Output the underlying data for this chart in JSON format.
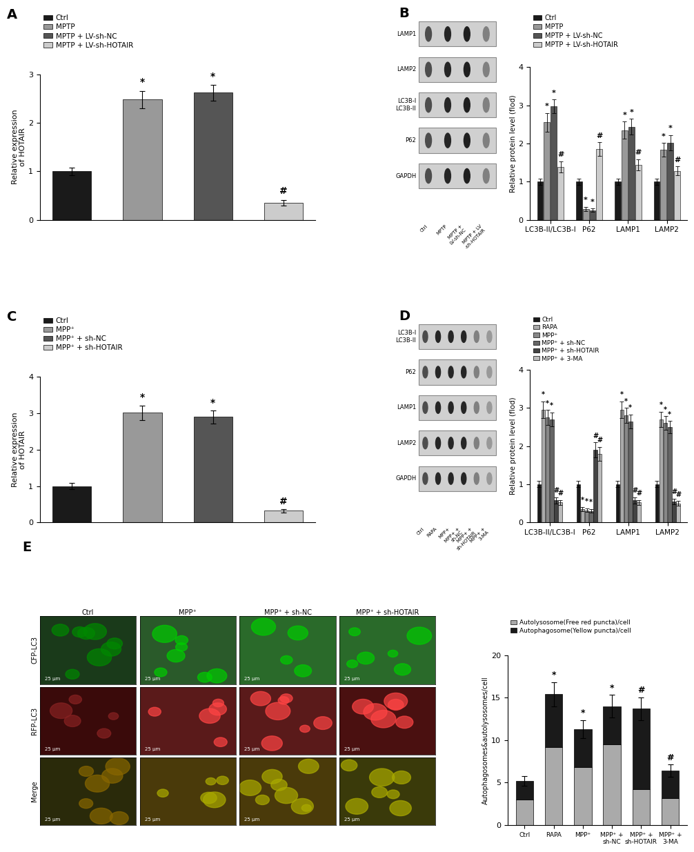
{
  "panel_A": {
    "title": "A",
    "ylabel": "Relative expression\nof HOTAIR",
    "ylim": [
      0,
      3
    ],
    "yticks": [
      0,
      1,
      2,
      3
    ],
    "categories": [
      "Ctrl",
      "MPTP",
      "MPTP + LV-sh-NC",
      "MPTP + LV-sh-HOTAIR"
    ],
    "values": [
      1.0,
      2.48,
      2.62,
      0.35
    ],
    "errors": [
      0.08,
      0.18,
      0.16,
      0.06
    ],
    "colors": [
      "#1a1a1a",
      "#999999",
      "#555555",
      "#cccccc"
    ],
    "annotations": [
      "",
      "*",
      "*",
      "#"
    ],
    "legend_labels": [
      "Ctrl",
      "MPTP",
      "MPTP + LV-sh-NC",
      "MPTP + LV-sh-HOTAIR"
    ],
    "legend_colors": [
      "#1a1a1a",
      "#999999",
      "#555555",
      "#cccccc"
    ]
  },
  "panel_B_bar": {
    "title": "B",
    "ylabel": "Relative protein level (flod)",
    "ylim": [
      0,
      4
    ],
    "yticks": [
      0,
      1,
      2,
      3,
      4
    ],
    "groups": [
      "LC3B-II/LC3B-I",
      "P62",
      "LAMP1",
      "LAMP2"
    ],
    "categories": [
      "Ctrl",
      "MPTP",
      "MPTP + LV-sh-NC",
      "MPTP + LV-sh-HOTAIR"
    ],
    "values": [
      [
        1.0,
        2.55,
        2.97,
        1.38
      ],
      [
        1.0,
        0.28,
        0.25,
        1.85
      ],
      [
        1.0,
        2.35,
        2.44,
        1.44
      ],
      [
        1.0,
        1.83,
        2.02,
        1.28
      ]
    ],
    "errors": [
      [
        0.08,
        0.25,
        0.18,
        0.15
      ],
      [
        0.08,
        0.06,
        0.05,
        0.18
      ],
      [
        0.08,
        0.22,
        0.2,
        0.15
      ],
      [
        0.08,
        0.18,
        0.2,
        0.12
      ]
    ],
    "annotations": [
      [
        "",
        "*",
        "*",
        "#"
      ],
      [
        "",
        "*",
        "*",
        "#"
      ],
      [
        "",
        "*",
        "*",
        "#"
      ],
      [
        "",
        "*",
        "*",
        "#"
      ]
    ],
    "colors": [
      "#1a1a1a",
      "#999999",
      "#555555",
      "#cccccc"
    ],
    "legend_labels": [
      "Ctrl",
      "MPTP",
      "MPTP + LV-sh-NC",
      "MPTP + LV-sh-HOTAIR"
    ],
    "legend_colors": [
      "#1a1a1a",
      "#999999",
      "#555555",
      "#cccccc"
    ]
  },
  "panel_C": {
    "title": "C",
    "ylabel": "Relative expression\nof HOTAIR",
    "ylim": [
      0,
      4
    ],
    "yticks": [
      0,
      1,
      2,
      3,
      4
    ],
    "categories": [
      "Ctrl",
      "MPP⁺",
      "MPP⁺ + sh-NC",
      "MPP⁺ + sh-HOTAIR"
    ],
    "values": [
      1.0,
      3.02,
      2.9,
      0.32
    ],
    "errors": [
      0.08,
      0.2,
      0.18,
      0.05
    ],
    "colors": [
      "#1a1a1a",
      "#999999",
      "#555555",
      "#cccccc"
    ],
    "annotations": [
      "",
      "*",
      "*",
      "#"
    ],
    "legend_labels": [
      "Ctrl",
      "MPP⁺",
      "MPP⁺ + sh-NC",
      "MPP⁺ + sh-HOTAIR"
    ],
    "legend_colors": [
      "#1a1a1a",
      "#999999",
      "#555555",
      "#cccccc"
    ]
  },
  "panel_D_bar": {
    "title": "D",
    "ylabel": "Relative protein level (flod)",
    "ylim": [
      0,
      4
    ],
    "yticks": [
      0,
      1,
      2,
      3,
      4
    ],
    "groups": [
      "LC3B-II/LC3B-I",
      "P62",
      "LAMP1",
      "LAMP2"
    ],
    "categories": [
      "Ctrl",
      "RAPA",
      "MPP⁺",
      "MPP⁺ + sh-NC",
      "MPP⁺ + sh-HOTAIR",
      "MPP⁺ + 3-MA"
    ],
    "values": [
      [
        1.0,
        2.95,
        2.75,
        2.7,
        0.58,
        0.52
      ],
      [
        1.0,
        0.35,
        0.32,
        0.3,
        1.9,
        1.8
      ],
      [
        1.0,
        2.95,
        2.8,
        2.65,
        0.58,
        0.52
      ],
      [
        1.0,
        2.7,
        2.6,
        2.5,
        0.55,
        0.5
      ]
    ],
    "errors": [
      [
        0.08,
        0.22,
        0.2,
        0.18,
        0.08,
        0.07
      ],
      [
        0.08,
        0.06,
        0.05,
        0.05,
        0.2,
        0.18
      ],
      [
        0.08,
        0.22,
        0.2,
        0.18,
        0.08,
        0.07
      ],
      [
        0.08,
        0.2,
        0.18,
        0.16,
        0.07,
        0.06
      ]
    ],
    "annotations": [
      [
        "",
        "*",
        "*",
        "*",
        "#",
        "#"
      ],
      [
        "",
        "*",
        "*",
        "*",
        "#",
        "#"
      ],
      [
        "",
        "*",
        "*",
        "*",
        "#",
        "#"
      ],
      [
        "",
        "*",
        "*",
        "*",
        "#",
        "#"
      ]
    ],
    "colors": [
      "#1a1a1a",
      "#aaaaaa",
      "#888888",
      "#666666",
      "#444444",
      "#bbbbbb"
    ],
    "legend_labels": [
      "Ctrl",
      "RAPA",
      "MPP⁺",
      "MPP⁺ + sh-NC",
      "MPP⁺ + sh-HOTAIR",
      "MPP⁺ + 3-MA"
    ],
    "legend_colors": [
      "#1a1a1a",
      "#aaaaaa",
      "#888888",
      "#666666",
      "#444444",
      "#bbbbbb"
    ]
  },
  "panel_E_bar": {
    "categories": [
      "Ctrl",
      "RAPA",
      "MPP⁺",
      "MPP⁺ +\nsh-NC",
      "MPP⁺ +\nsh-HOTAIR",
      "MPP⁺ +\n3-MA"
    ],
    "autolysosome": [
      3.0,
      9.2,
      6.8,
      9.5,
      4.2,
      3.2
    ],
    "autophagosome": [
      2.2,
      6.2,
      4.5,
      4.5,
      9.5,
      3.2
    ],
    "autolysosome_errors": [
      0.5,
      1.2,
      0.9,
      1.2,
      0.6,
      0.5
    ],
    "autophagosome_errors": [
      0.3,
      0.8,
      0.6,
      0.6,
      1.2,
      0.5
    ],
    "annotations": [
      "",
      "*",
      "*",
      "*",
      "#",
      "#"
    ],
    "autolysosome_color": "#aaaaaa",
    "autophagosome_color": "#1a1a1a",
    "ylabel": "Autophagosomes&autolysosomes/cell",
    "ylim": [
      0,
      20
    ],
    "yticks": [
      0,
      5,
      10,
      15,
      20
    ]
  },
  "blot_bg": "#e8e8e8",
  "figure_bg": "#ffffff"
}
